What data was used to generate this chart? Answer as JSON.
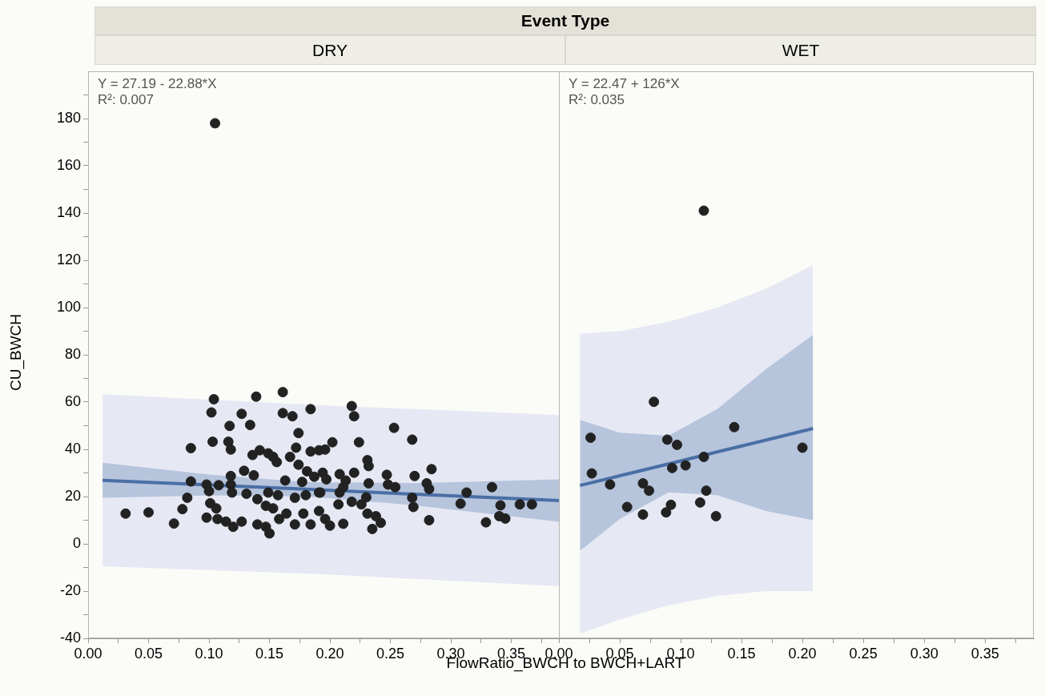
{
  "chart_data": [
    {
      "type": "scatter",
      "title": "Event Type",
      "subtitle": "DRY",
      "xlabel": "FlowRatio_BWCH to BWCH+LART",
      "ylabel": "CU_BWCH",
      "annotations": [
        "Y = 27.19 - 22.88*X",
        "R²: 0.007"
      ],
      "xlim": [
        0,
        0.39
      ],
      "ylim": [
        -40,
        200
      ],
      "xticks": [
        {
          "value": 0,
          "label": "0.00"
        },
        {
          "value": 0.025,
          "label": null
        },
        {
          "value": 0.05,
          "label": "0.05"
        },
        {
          "value": 0.075,
          "label": null
        },
        {
          "value": 0.1,
          "label": "0.10"
        },
        {
          "value": 0.125,
          "label": null
        },
        {
          "value": 0.15,
          "label": "0.15"
        },
        {
          "value": 0.175,
          "label": null
        },
        {
          "value": 0.2,
          "label": "0.20"
        },
        {
          "value": 0.225,
          "label": null
        },
        {
          "value": 0.25,
          "label": "0.25"
        },
        {
          "value": 0.275,
          "label": null
        },
        {
          "value": 0.3,
          "label": "0.30"
        },
        {
          "value": 0.325,
          "label": null
        },
        {
          "value": 0.35,
          "label": "0.35"
        },
        {
          "value": 0.375,
          "label": null
        }
      ],
      "yticks": [
        -40,
        {
          "value": -30,
          "label": null
        },
        -20,
        {
          "value": -10,
          "label": null
        },
        0,
        {
          "value": 10,
          "label": null
        },
        20,
        {
          "value": 30,
          "label": null
        },
        40,
        {
          "value": 50,
          "label": null
        },
        60,
        {
          "value": 70,
          "label": null
        },
        80,
        {
          "value": 90,
          "label": null
        },
        100,
        {
          "value": 110,
          "label": null
        },
        120,
        {
          "value": 130,
          "label": null
        },
        140,
        {
          "value": 150,
          "label": null
        },
        160,
        {
          "value": 170,
          "label": null
        },
        180,
        {
          "value": 190,
          "label": null
        }
      ],
      "series": [
        {
          "type": "area",
          "color": "#e6e9f4",
          "x": [
            0.012,
            0.2,
            0.39
          ],
          "values": [
            null,
            null,
            null
          ],
          "lower": [
            -9.5,
            -13,
            -18
          ],
          "upper": [
            63.3,
            58.5,
            54.5
          ]
        },
        {
          "type": "line",
          "color": "#4a6fa5",
          "x": [
            0.012,
            0.1,
            0.18,
            0.27,
            0.39
          ],
          "values": [
            26.9,
            24.9,
            23.1,
            21,
            18.3
          ],
          "lower": [
            19.5,
            20.5,
            20.1,
            16.3,
            9.3
          ],
          "upper": [
            34.3,
            29.3,
            26.1,
            25.7,
            27.3
          ]
        },
        {
          "type": "scatter",
          "color": "#222222",
          "marker": "circle",
          "x": [
            0.105,
            0.031,
            0.05,
            0.071,
            0.078,
            0.082,
            0.085,
            0.085,
            0.104,
            0.102,
            0.103,
            0.098,
            0.108,
            0.1,
            0.101,
            0.106,
            0.098,
            0.107,
            0.114,
            0.12,
            0.117,
            0.116,
            0.118,
            0.118,
            0.118,
            0.119,
            0.127,
            0.127,
            0.129,
            0.137,
            0.134,
            0.131,
            0.139,
            0.14,
            0.136,
            0.142,
            0.149,
            0.153,
            0.156,
            0.149,
            0.157,
            0.147,
            0.153,
            0.14,
            0.147,
            0.15,
            0.158,
            0.161,
            0.161,
            0.169,
            0.174,
            0.172,
            0.167,
            0.174,
            0.184,
            0.184,
            0.163,
            0.177,
            0.181,
            0.187,
            0.171,
            0.18,
            0.164,
            0.171,
            0.178,
            0.184,
            0.191,
            0.191,
            0.218,
            0.22,
            0.253,
            0.268,
            0.202,
            0.196,
            0.224,
            0.231,
            0.232,
            0.22,
            0.208,
            0.194,
            0.197,
            0.213,
            0.247,
            0.27,
            0.284,
            0.28,
            0.282,
            0.232,
            0.248,
            0.254,
            0.211,
            0.192,
            0.208,
            0.23,
            0.207,
            0.218,
            0.226,
            0.268,
            0.269,
            0.231,
            0.238,
            0.242,
            0.235,
            0.191,
            0.196,
            0.2,
            0.211,
            0.282,
            0.313,
            0.308,
            0.334,
            0.329,
            0.341,
            0.34,
            0.345,
            0.357,
            0.367
          ],
          "values": [
            178,
            12.8,
            13.3,
            8.6,
            14.7,
            19.5,
            40.5,
            26.4,
            61.2,
            55.6,
            43.2,
            25.1,
            24.8,
            22.3,
            17.2,
            15,
            11.1,
            10.5,
            9.4,
            7.2,
            49.9,
            43.2,
            39.9,
            28.7,
            25.1,
            21.7,
            55,
            9.4,
            30.9,
            29,
            50.3,
            21.2,
            62.3,
            18.9,
            37.6,
            39.6,
            38.3,
            36.8,
            34.6,
            21.7,
            20.6,
            16.1,
            15,
            8.2,
            7.2,
            4.4,
            10.5,
            64.2,
            55.3,
            54,
            46.9,
            40.7,
            36.8,
            33.5,
            57,
            39.1,
            26.8,
            26.2,
            30.7,
            28.4,
            19.5,
            20.6,
            12.8,
            8.2,
            12.8,
            8.2,
            21.7,
            39.6,
            58.3,
            54,
            49.1,
            44.1,
            43,
            39.9,
            43,
            35.4,
            32.9,
            30.1,
            29.5,
            30.1,
            27.3,
            26.8,
            29.2,
            28.7,
            31.6,
            25.6,
            23.2,
            25.6,
            25.1,
            24,
            24,
            21.7,
            21.7,
            19.7,
            16.7,
            17.8,
            16.7,
            19.5,
            15.6,
            12.8,
            11.7,
            8.9,
            6.3,
            13.9,
            10.5,
            7.7,
            8.5,
            10,
            21.7,
            17,
            24,
            9.1,
            16.3,
            11.7,
            10.7,
            16.7,
            16.7
          ]
        }
      ]
    },
    {
      "type": "scatter",
      "subtitle": "WET",
      "annotations": [
        "Y = 22.47 + 126*X",
        "R²: 0.035"
      ],
      "xlim": [
        0,
        0.39
      ],
      "ylim": [
        -40,
        200
      ],
      "tick_labels": "x",
      "xticks": [
        {
          "value": 0,
          "label": "0.00"
        },
        {
          "value": 0.025,
          "label": null
        },
        {
          "value": 0.05,
          "label": "0.05"
        },
        {
          "value": 0.075,
          "label": null
        },
        {
          "value": 0.1,
          "label": "0.10"
        },
        {
          "value": 0.125,
          "label": null
        },
        {
          "value": 0.15,
          "label": "0.15"
        },
        {
          "value": 0.175,
          "label": null
        },
        {
          "value": 0.2,
          "label": "0.20"
        },
        {
          "value": 0.225,
          "label": null
        },
        {
          "value": 0.25,
          "label": "0.25"
        },
        {
          "value": 0.275,
          "label": null
        },
        {
          "value": 0.3,
          "label": "0.30"
        },
        {
          "value": 0.325,
          "label": null
        },
        {
          "value": 0.35,
          "label": "0.35"
        },
        {
          "value": 0.375,
          "label": null
        }
      ],
      "series": [
        {
          "type": "area",
          "color": "#e6e9f4",
          "x": [
            0.0173,
            0.05,
            0.09,
            0.13,
            0.17,
            0.2087
          ],
          "values": [
            null,
            null,
            null,
            null,
            null,
            null
          ],
          "lower": [
            -38,
            -32,
            -26,
            -22,
            -20,
            -20
          ],
          "upper": [
            89,
            90,
            94,
            100,
            108,
            118
          ]
        },
        {
          "type": "line",
          "color": "#4a6fa5",
          "x": [
            0.0173,
            0.05,
            0.09,
            0.13,
            0.17,
            0.2087
          ],
          "values": [
            24.7,
            28.8,
            33.8,
            38.9,
            43.9,
            48.8
          ],
          "lower": [
            -3,
            10.5,
            21.8,
            20.6,
            13.9,
            10
          ],
          "upper": [
            52.5,
            47,
            45.8,
            57,
            73.9,
            88.5
          ]
        },
        {
          "type": "scatter",
          "color": "#222222",
          "marker": "circle",
          "x": [
            0.119,
            0.078,
            0.026,
            0.027,
            0.042,
            0.056,
            0.069,
            0.074,
            0.069,
            0.089,
            0.097,
            0.093,
            0.104,
            0.092,
            0.088,
            0.116,
            0.119,
            0.121,
            0.129,
            0.144,
            0.2
          ],
          "values": [
            141,
            60.1,
            44.9,
            29.8,
            25.1,
            15.6,
            25.6,
            22.5,
            12.4,
            44.1,
            41.9,
            32.1,
            33.2,
            16.5,
            13.3,
            17.5,
            36.8,
            22.5,
            11.7,
            49.4,
            40.7
          ]
        }
      ]
    }
  ]
}
